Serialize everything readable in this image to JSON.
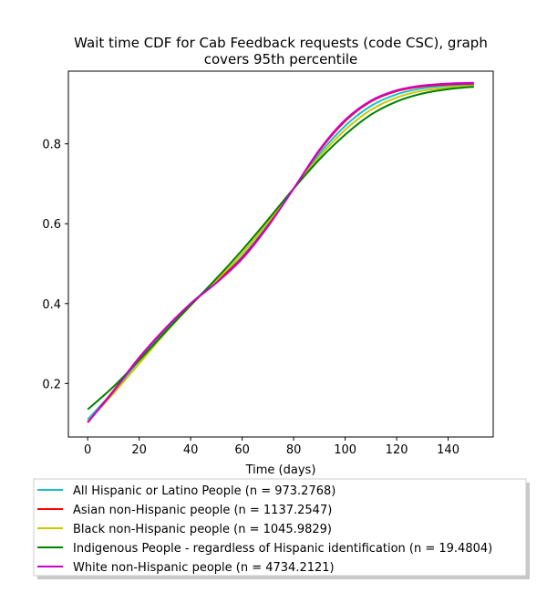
{
  "chart_data": {
    "type": "line",
    "title_line1": "Wait time CDF for Cab Feedback  requests (code CSC), graph",
    "title_line2": "covers 95th percentile",
    "xlabel": "Time (days)",
    "ylabel": "",
    "xlim": [
      -7.5,
      157.5
    ],
    "ylim": [
      0.066,
      0.982
    ],
    "xticks": [
      0,
      20,
      40,
      60,
      80,
      100,
      120,
      140
    ],
    "yticks": [
      0.2,
      0.4,
      0.6,
      0.8
    ],
    "grid": false,
    "legend_position": "below plot",
    "x": [
      0,
      10,
      20,
      30,
      40,
      50,
      60,
      70,
      80,
      90,
      100,
      110,
      120,
      130,
      140,
      150
    ],
    "series": [
      {
        "name": "All Hispanic or Latino People (n = 973.2768)",
        "color": "#17becf",
        "values": [
          0.11,
          0.18,
          0.258,
          0.33,
          0.4,
          0.455,
          0.518,
          0.597,
          0.688,
          0.775,
          0.845,
          0.895,
          0.924,
          0.939,
          0.946,
          0.949
        ]
      },
      {
        "name": "Asian non-Hispanic people (n = 1137.2547)",
        "color": "#ff0000",
        "values": [
          0.102,
          0.182,
          0.265,
          0.337,
          0.4,
          0.454,
          0.515,
          0.595,
          0.688,
          0.783,
          0.857,
          0.906,
          0.932,
          0.944,
          0.949,
          0.951
        ]
      },
      {
        "name": "Black non-Hispanic people (n = 1045.9829)",
        "color": "#c8c800",
        "values": [
          0.105,
          0.175,
          0.25,
          0.325,
          0.395,
          0.458,
          0.526,
          0.604,
          0.688,
          0.768,
          0.835,
          0.885,
          0.916,
          0.933,
          0.941,
          0.945
        ]
      },
      {
        "name": "Indigenous People - regardless of Hispanic identification (n = 19.4804)",
        "color": "#008000",
        "values": [
          0.135,
          0.192,
          0.258,
          0.328,
          0.396,
          0.463,
          0.534,
          0.61,
          0.688,
          0.761,
          0.823,
          0.873,
          0.906,
          0.926,
          0.937,
          0.943
        ]
      },
      {
        "name": "White non-Hispanic people (n = 4734.2121)",
        "color": "#cc00cc",
        "values": [
          0.103,
          0.18,
          0.264,
          0.336,
          0.4,
          0.452,
          0.512,
          0.593,
          0.688,
          0.785,
          0.86,
          0.908,
          0.934,
          0.946,
          0.951,
          0.953
        ]
      }
    ]
  }
}
